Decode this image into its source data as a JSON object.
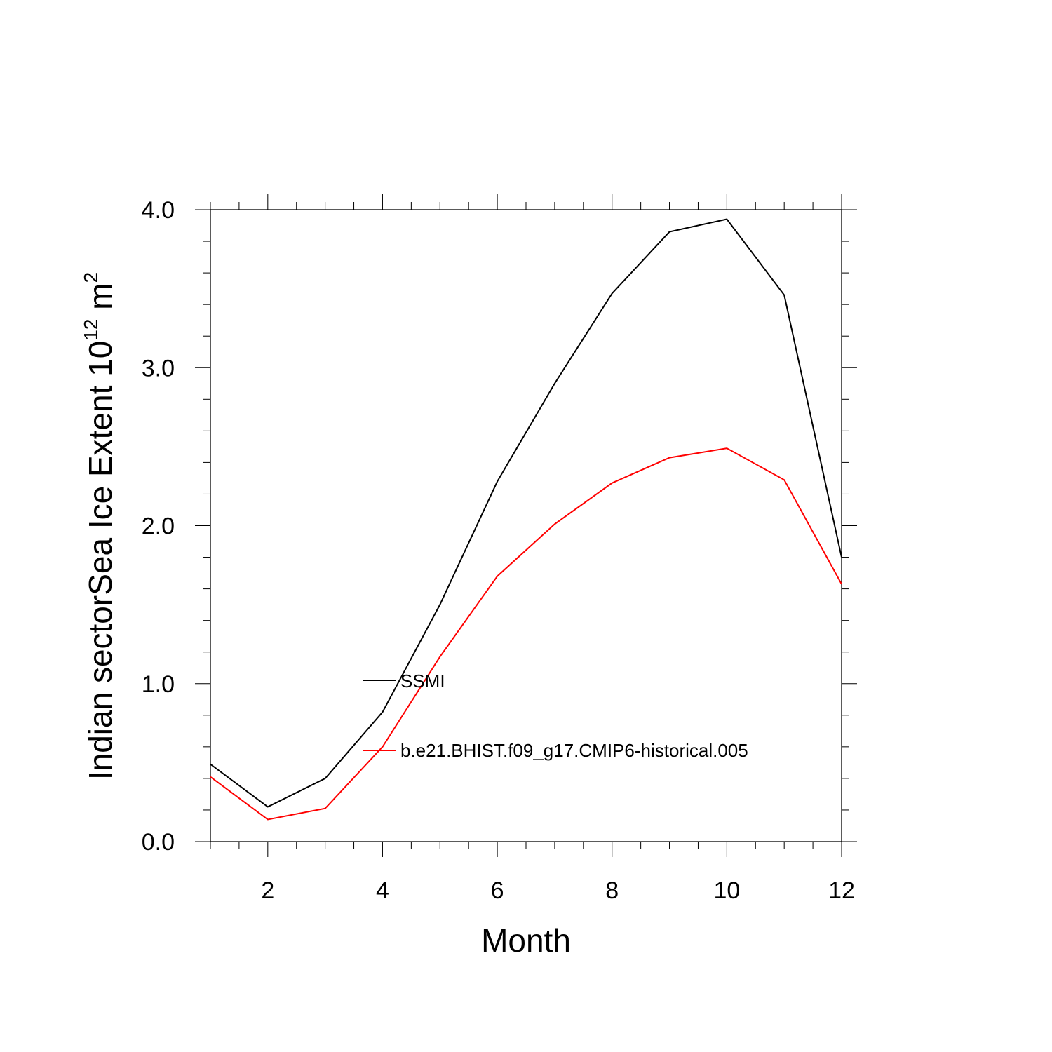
{
  "chart_data": {
    "type": "line",
    "xlabel": "Month",
    "ylabel": {
      "prefix": "Indian sectorSea Ice Extent 10",
      "exponent": "12",
      "unit": " m",
      "unit_exponent": "2"
    },
    "xlim": [
      1,
      12
    ],
    "ylim": [
      0,
      4
    ],
    "x_ticks": [
      2,
      4,
      6,
      8,
      10,
      12
    ],
    "x_tick_labels": [
      "2",
      "4",
      "6",
      "8",
      "10",
      "12"
    ],
    "y_ticks": [
      0,
      1,
      2,
      3,
      4
    ],
    "y_tick_labels": [
      "0.0",
      "1.0",
      "2.0",
      "3.0",
      "4.0"
    ],
    "grid": false,
    "legend_position": "inside-center",
    "x": [
      1,
      2,
      3,
      4,
      5,
      6,
      7,
      8,
      9,
      10,
      11,
      12
    ],
    "series": [
      {
        "name": "SSMI",
        "color": "#000000",
        "values": [
          0.49,
          0.22,
          0.4,
          0.82,
          1.5,
          2.28,
          2.9,
          3.47,
          3.86,
          3.94,
          3.46,
          1.8
        ]
      },
      {
        "name": "b.e21.BHIST.f09_g17.CMIP6-historical.005",
        "color": "#ff0000",
        "values": [
          0.41,
          0.14,
          0.21,
          0.6,
          1.17,
          1.68,
          2.01,
          2.27,
          2.43,
          2.49,
          2.29,
          1.63
        ]
      }
    ]
  }
}
